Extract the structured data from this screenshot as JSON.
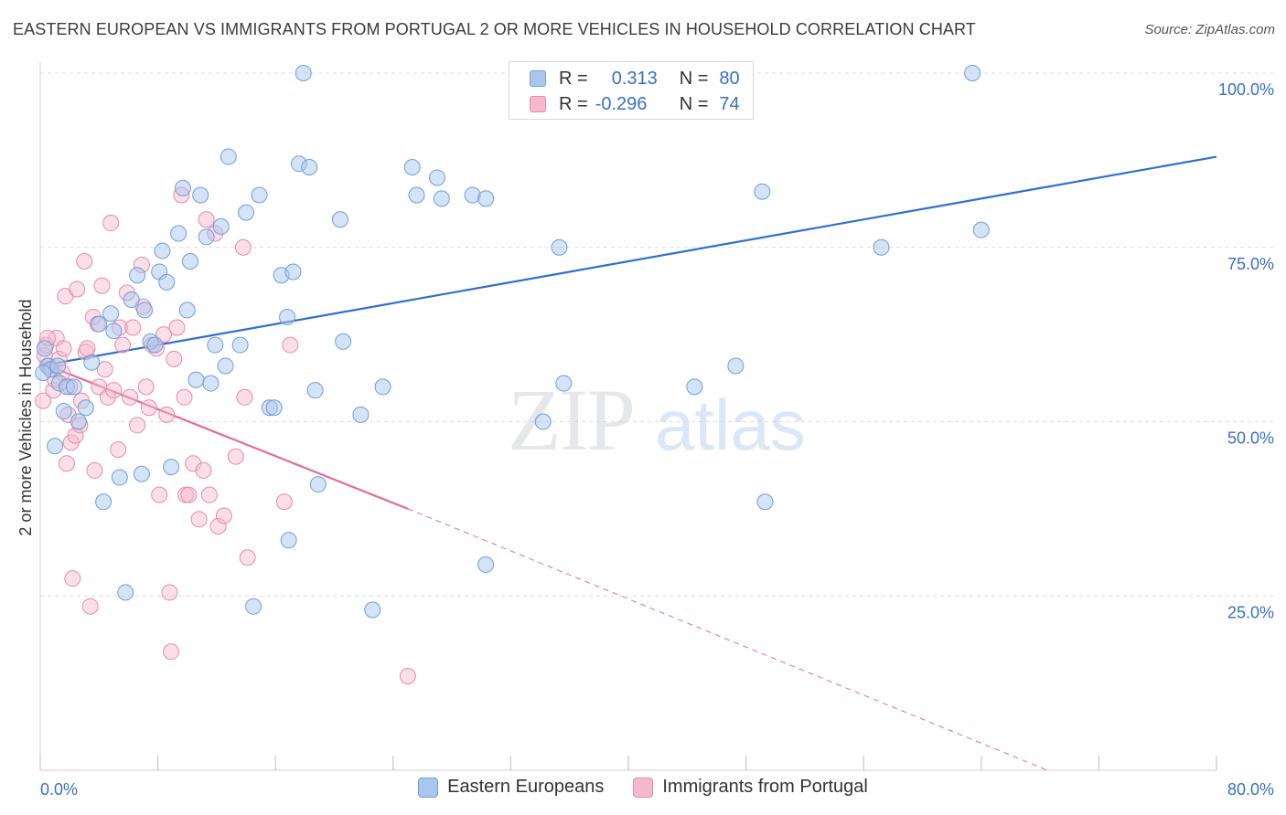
{
  "title": "EASTERN EUROPEAN VS IMMIGRANTS FROM PORTUGAL 2 OR MORE VEHICLES IN HOUSEHOLD CORRELATION CHART",
  "source": "Source: ZipAtlas.com",
  "watermark": {
    "zip": "ZIP",
    "atlas": "atlas"
  },
  "legend": {
    "rows": [
      {
        "r_label": "R =",
        "r_value": "0.313",
        "n_label": "N =",
        "n_value": "80"
      },
      {
        "r_label": "R =",
        "r_value": "-0.296",
        "n_label": "N =",
        "n_value": "74"
      }
    ]
  },
  "colors": {
    "blue_fill": "#a9c7ee",
    "blue_stroke": "#6f9fd8",
    "blue_line": "#2f6fcf",
    "pink_fill": "#f5b8cc",
    "pink_stroke": "#e88aa8",
    "pink_line": "#e56a93",
    "grid": "#dcdcdc",
    "tick_label": "#3a6fc4"
  },
  "chart_data": {
    "type": "scatter",
    "title": "EASTERN EUROPEAN VS IMMIGRANTS FROM PORTUGAL 2 OR MORE VEHICLES IN HOUSEHOLD CORRELATION CHART",
    "xlabel": "",
    "ylabel": "2 or more Vehicles in Household",
    "xlim": [
      0,
      80
    ],
    "ylim": [
      0,
      100
    ],
    "x_tick_labels": [
      "0.0%",
      "80.0%"
    ],
    "y_ticks": [
      25,
      50,
      75,
      100
    ],
    "y_tick_labels": [
      "25.0%",
      "50.0%",
      "75.0%",
      "100.0%"
    ],
    "grid": true,
    "legend_position": "bottom",
    "series": [
      {
        "name": "Eastern Europeans",
        "color": "#a9c7ee",
        "R": 0.313,
        "N": 80,
        "trend": {
          "x": [
            0,
            80
          ],
          "y": [
            58.0,
            88.0
          ]
        },
        "points": [
          [
            0.3,
            60.5
          ],
          [
            0.5,
            58
          ],
          [
            0.7,
            57.5
          ],
          [
            1.0,
            46.5
          ],
          [
            1.3,
            55.5
          ],
          [
            1.6,
            51.5
          ],
          [
            1.8,
            55
          ],
          [
            2.3,
            55
          ],
          [
            2.6,
            50
          ],
          [
            3.1,
            52
          ],
          [
            3.5,
            58.5
          ],
          [
            4.0,
            64
          ],
          [
            4.3,
            38.5
          ],
          [
            4.8,
            65.5
          ],
          [
            5.0,
            63
          ],
          [
            5.4,
            42
          ],
          [
            5.8,
            25.5
          ],
          [
            6.2,
            67.5
          ],
          [
            6.6,
            71
          ],
          [
            6.9,
            42.5
          ],
          [
            7.1,
            66
          ],
          [
            7.5,
            61.5
          ],
          [
            7.8,
            61
          ],
          [
            8.1,
            71.5
          ],
          [
            8.3,
            74.5
          ],
          [
            8.6,
            70
          ],
          [
            8.9,
            43.5
          ],
          [
            9.4,
            77
          ],
          [
            9.7,
            83.5
          ],
          [
            10.0,
            66
          ],
          [
            10.2,
            73
          ],
          [
            10.6,
            56
          ],
          [
            10.9,
            82.5
          ],
          [
            11.3,
            76.5
          ],
          [
            11.6,
            55.5
          ],
          [
            11.9,
            61
          ],
          [
            12.3,
            78
          ],
          [
            12.6,
            58
          ],
          [
            12.8,
            88
          ],
          [
            13.6,
            61
          ],
          [
            14.0,
            80
          ],
          [
            14.5,
            23.5
          ],
          [
            14.9,
            82.5
          ],
          [
            15.6,
            52
          ],
          [
            15.9,
            52
          ],
          [
            16.4,
            71
          ],
          [
            16.8,
            65
          ],
          [
            16.9,
            33
          ],
          [
            17.2,
            71.5
          ],
          [
            17.6,
            87
          ],
          [
            17.9,
            100
          ],
          [
            18.3,
            86.5
          ],
          [
            18.7,
            54.5
          ],
          [
            18.9,
            41
          ],
          [
            20.4,
            79
          ],
          [
            20.6,
            61.5
          ],
          [
            21.8,
            51
          ],
          [
            22.6,
            23
          ],
          [
            23.3,
            55
          ],
          [
            25.3,
            86.5
          ],
          [
            25.6,
            82.5
          ],
          [
            27.0,
            85
          ],
          [
            27.3,
            82
          ],
          [
            29.4,
            82.5
          ],
          [
            30.3,
            82
          ],
          [
            30.3,
            29.5
          ],
          [
            34.2,
            50
          ],
          [
            35.3,
            75
          ],
          [
            35.6,
            55.5
          ],
          [
            44.5,
            55
          ],
          [
            47.3,
            58
          ],
          [
            49.3,
            38.5
          ],
          [
            49.1,
            83
          ],
          [
            57.2,
            75
          ],
          [
            63.4,
            100
          ],
          [
            64.0,
            77.5
          ],
          [
            34.0,
            100
          ],
          [
            38.0,
            100
          ],
          [
            0.2,
            57
          ],
          [
            1.2,
            58
          ]
        ]
      },
      {
        "name": "Immigrants from Portugal",
        "color": "#f5b8cc",
        "R": -0.296,
        "N": 74,
        "trend": {
          "x": [
            0,
            25
          ],
          "y": [
            58.5,
            37.5
          ]
        },
        "trend_extension": {
          "x": [
            25,
            68.5
          ],
          "y": [
            37.5,
            0
          ]
        },
        "points": [
          [
            0.2,
            53
          ],
          [
            0.3,
            59.5
          ],
          [
            0.4,
            61
          ],
          [
            0.6,
            58
          ],
          [
            0.8,
            57.5
          ],
          [
            0.9,
            54.5
          ],
          [
            1.1,
            62
          ],
          [
            1.3,
            59
          ],
          [
            1.5,
            57
          ],
          [
            1.6,
            60.5
          ],
          [
            1.7,
            68
          ],
          [
            1.8,
            44
          ],
          [
            1.9,
            51
          ],
          [
            2.1,
            47
          ],
          [
            2.2,
            27.5
          ],
          [
            2.4,
            48
          ],
          [
            2.5,
            69
          ],
          [
            2.7,
            49.5
          ],
          [
            2.8,
            53
          ],
          [
            3.0,
            73
          ],
          [
            3.1,
            60
          ],
          [
            3.2,
            60.5
          ],
          [
            3.4,
            23.5
          ],
          [
            3.6,
            65
          ],
          [
            3.7,
            43
          ],
          [
            3.9,
            64
          ],
          [
            4.0,
            55
          ],
          [
            4.2,
            69.5
          ],
          [
            4.4,
            57.5
          ],
          [
            4.6,
            53.5
          ],
          [
            4.8,
            78.5
          ],
          [
            5.0,
            54.5
          ],
          [
            5.3,
            46
          ],
          [
            5.4,
            63.5
          ],
          [
            5.6,
            61
          ],
          [
            5.9,
            68.5
          ],
          [
            6.1,
            53.5
          ],
          [
            6.3,
            63.5
          ],
          [
            6.6,
            49.5
          ],
          [
            6.9,
            72.5
          ],
          [
            7.0,
            66.5
          ],
          [
            7.2,
            55
          ],
          [
            7.4,
            52
          ],
          [
            7.6,
            61
          ],
          [
            7.9,
            60.5
          ],
          [
            8.1,
            39.5
          ],
          [
            8.4,
            62.5
          ],
          [
            8.6,
            51
          ],
          [
            8.8,
            25.5
          ],
          [
            8.9,
            17
          ],
          [
            9.1,
            59
          ],
          [
            9.3,
            63.5
          ],
          [
            9.6,
            82.5
          ],
          [
            9.8,
            53.5
          ],
          [
            9.9,
            39.5
          ],
          [
            10.1,
            39.5
          ],
          [
            10.4,
            44
          ],
          [
            10.8,
            36
          ],
          [
            11.1,
            43
          ],
          [
            11.3,
            79
          ],
          [
            11.5,
            39.5
          ],
          [
            11.9,
            77
          ],
          [
            12.1,
            35
          ],
          [
            12.5,
            36.5
          ],
          [
            13.3,
            45
          ],
          [
            13.8,
            75
          ],
          [
            13.9,
            53.5
          ],
          [
            14.1,
            30.5
          ],
          [
            16.6,
            38.5
          ],
          [
            17.0,
            61
          ],
          [
            25.0,
            13.5
          ],
          [
            0.5,
            62
          ],
          [
            1.0,
            56
          ],
          [
            2.0,
            55
          ]
        ]
      }
    ]
  }
}
